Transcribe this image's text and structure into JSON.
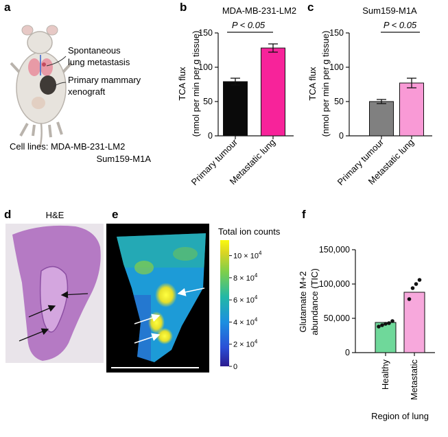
{
  "panels": {
    "a": {
      "letter": "a",
      "label_spontaneous_line1": "Spontaneous",
      "label_spontaneous_line2": "lung metastasis",
      "label_xenograft_line1": "Primary mammary",
      "label_xenograft_line2": "xenograft",
      "cell_lines_line1": "Cell lines: MDA-MB-231-LM2",
      "cell_lines_line2": "Sum159-M1A"
    },
    "d": {
      "letter": "d",
      "title": "H&E"
    },
    "e": {
      "letter": "e",
      "colorbar_title": "Total ion counts",
      "colorbar_ticks": [
        {
          "value": 10,
          "label": "10 × 10",
          "exp": "4"
        },
        {
          "value": 8,
          "label": "8 × 10",
          "exp": "4"
        },
        {
          "value": 6,
          "label": "6 × 10",
          "exp": "4"
        },
        {
          "value": 4,
          "label": "4 × 10",
          "exp": "4"
        },
        {
          "value": 2,
          "label": "2 × 10",
          "exp": "4"
        },
        {
          "value": 0,
          "label": "0",
          "exp": ""
        }
      ]
    }
  },
  "chart_data": [
    {
      "id": "b",
      "letter": "b",
      "type": "bar",
      "title": "MDA-MB-231-LM2",
      "ylabel_line1": "TCA flux",
      "ylabel_line2": "(nmol per min per g tissue)",
      "categories": [
        "Primary tumour",
        "Metastatic lung"
      ],
      "values": [
        79,
        128
      ],
      "errors": [
        5,
        6
      ],
      "colors": [
        "#0a0a0a",
        "#f7239a"
      ],
      "ylim": [
        0,
        150
      ],
      "yticks": [
        0,
        50,
        100,
        150
      ],
      "annotation": "P < 0.05"
    },
    {
      "id": "c",
      "letter": "c",
      "type": "bar",
      "title": "Sum159-M1A",
      "ylabel_line1": "TCA flux",
      "ylabel_line2": "(nmol per min per g tissue)",
      "categories": [
        "Primary tumour",
        "Metastatic lung"
      ],
      "values": [
        50,
        77
      ],
      "errors": [
        3,
        7
      ],
      "colors": [
        "#808080",
        "#f99ad6"
      ],
      "ylim": [
        0,
        150
      ],
      "yticks": [
        0,
        50,
        100,
        150
      ],
      "annotation": "P < 0.05"
    },
    {
      "id": "f",
      "letter": "f",
      "type": "bar",
      "title": "",
      "ylabel_line1": "Glutamate M+2",
      "ylabel_line2": "abundance (TIC)",
      "xlabel": "Region of lung",
      "categories": [
        "Healthy",
        "Metastatic"
      ],
      "values": [
        44000,
        88000
      ],
      "colors": [
        "#6fd89a",
        "#f7a8dc"
      ],
      "points": [
        [
          38000,
          40000,
          42000,
          43000,
          46000
        ],
        [
          78000,
          94000,
          100000,
          106000
        ]
      ],
      "ylim": [
        0,
        150000
      ],
      "yticks": [
        0,
        50000,
        100000,
        150000
      ],
      "yticklabels": [
        "0",
        "50,000",
        "100,000",
        "150,000"
      ]
    }
  ]
}
